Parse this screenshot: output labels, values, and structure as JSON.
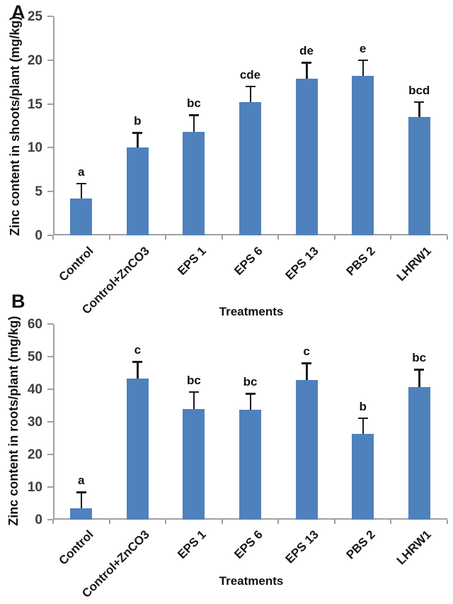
{
  "chart_data": [
    {
      "type": "bar",
      "panel_label": "A",
      "title": "",
      "xlabel": "Treatments",
      "ylabel": "Zinc content in shoots/plant (mg/kg)",
      "categories": [
        "Control",
        "Control+ZnCO3",
        "EPS 1",
        "EPS 6",
        "EPS 13",
        "PBS 2",
        "LHRW1"
      ],
      "values": [
        4.2,
        10.0,
        11.8,
        15.2,
        17.9,
        18.2,
        13.5
      ],
      "error_plus": [
        1.8,
        1.8,
        2.0,
        1.9,
        1.9,
        1.9,
        1.8
      ],
      "sig_letters": [
        "a",
        "b",
        "bc",
        "cde",
        "de",
        "e",
        "bcd"
      ],
      "yticks": [
        0,
        5,
        10,
        15,
        20,
        25
      ],
      "ylim": [
        0,
        25
      ],
      "grid": "off",
      "legend": "none",
      "bar_color": "#4f81bd",
      "error_color": "#1c1c1c",
      "axis_color": "#a0a0a0"
    },
    {
      "type": "bar",
      "panel_label": "B",
      "title": "",
      "xlabel": "Treatments",
      "ylabel": "Zinc content in roots/plant (mg/kg)",
      "categories": [
        "Control",
        "Control+ZnCO3",
        "EPS 1",
        "EPS 6",
        "EPS 13",
        "PBS 2",
        "LHRW1"
      ],
      "values": [
        3.4,
        43.3,
        34.0,
        33.6,
        42.9,
        26.2,
        40.7
      ],
      "error_plus": [
        5.2,
        5.3,
        5.4,
        5.3,
        5.3,
        5.2,
        5.5
      ],
      "sig_letters": [
        "a",
        "c",
        "bc",
        "bc",
        "c",
        "b",
        "bc"
      ],
      "yticks": [
        0,
        10,
        20,
        30,
        40,
        50,
        60
      ],
      "ylim": [
        0,
        60
      ],
      "grid": "off",
      "legend": "none",
      "bar_color": "#4f81bd",
      "error_color": "#1c1c1c",
      "axis_color": "#a0a0a0"
    }
  ]
}
